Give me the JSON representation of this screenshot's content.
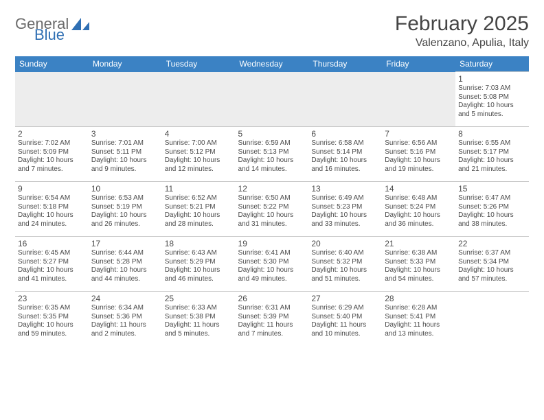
{
  "logo": {
    "text_general": "General",
    "text_blue": "Blue"
  },
  "title": {
    "month": "February 2025",
    "location": "Valenzano, Apulia, Italy"
  },
  "colors": {
    "header_bg": "#3b82c4",
    "header_text": "#ffffff",
    "band_bg": "#ededed",
    "rule": "#c9c9c9",
    "text": "#4a4a4a",
    "logo_gray": "#6b6b6b",
    "logo_blue": "#2f6fb3"
  },
  "calendar": {
    "columns": [
      "Sunday",
      "Monday",
      "Tuesday",
      "Wednesday",
      "Thursday",
      "Friday",
      "Saturday"
    ],
    "weeks": [
      [
        null,
        null,
        null,
        null,
        null,
        null,
        {
          "n": "1",
          "sunrise": "7:03 AM",
          "sunset": "5:08 PM",
          "daylight": "10 hours and 5 minutes."
        }
      ],
      [
        {
          "n": "2",
          "sunrise": "7:02 AM",
          "sunset": "5:09 PM",
          "daylight": "10 hours and 7 minutes."
        },
        {
          "n": "3",
          "sunrise": "7:01 AM",
          "sunset": "5:11 PM",
          "daylight": "10 hours and 9 minutes."
        },
        {
          "n": "4",
          "sunrise": "7:00 AM",
          "sunset": "5:12 PM",
          "daylight": "10 hours and 12 minutes."
        },
        {
          "n": "5",
          "sunrise": "6:59 AM",
          "sunset": "5:13 PM",
          "daylight": "10 hours and 14 minutes."
        },
        {
          "n": "6",
          "sunrise": "6:58 AM",
          "sunset": "5:14 PM",
          "daylight": "10 hours and 16 minutes."
        },
        {
          "n": "7",
          "sunrise": "6:56 AM",
          "sunset": "5:16 PM",
          "daylight": "10 hours and 19 minutes."
        },
        {
          "n": "8",
          "sunrise": "6:55 AM",
          "sunset": "5:17 PM",
          "daylight": "10 hours and 21 minutes."
        }
      ],
      [
        {
          "n": "9",
          "sunrise": "6:54 AM",
          "sunset": "5:18 PM",
          "daylight": "10 hours and 24 minutes."
        },
        {
          "n": "10",
          "sunrise": "6:53 AM",
          "sunset": "5:19 PM",
          "daylight": "10 hours and 26 minutes."
        },
        {
          "n": "11",
          "sunrise": "6:52 AM",
          "sunset": "5:21 PM",
          "daylight": "10 hours and 28 minutes."
        },
        {
          "n": "12",
          "sunrise": "6:50 AM",
          "sunset": "5:22 PM",
          "daylight": "10 hours and 31 minutes."
        },
        {
          "n": "13",
          "sunrise": "6:49 AM",
          "sunset": "5:23 PM",
          "daylight": "10 hours and 33 minutes."
        },
        {
          "n": "14",
          "sunrise": "6:48 AM",
          "sunset": "5:24 PM",
          "daylight": "10 hours and 36 minutes."
        },
        {
          "n": "15",
          "sunrise": "6:47 AM",
          "sunset": "5:26 PM",
          "daylight": "10 hours and 38 minutes."
        }
      ],
      [
        {
          "n": "16",
          "sunrise": "6:45 AM",
          "sunset": "5:27 PM",
          "daylight": "10 hours and 41 minutes."
        },
        {
          "n": "17",
          "sunrise": "6:44 AM",
          "sunset": "5:28 PM",
          "daylight": "10 hours and 44 minutes."
        },
        {
          "n": "18",
          "sunrise": "6:43 AM",
          "sunset": "5:29 PM",
          "daylight": "10 hours and 46 minutes."
        },
        {
          "n": "19",
          "sunrise": "6:41 AM",
          "sunset": "5:30 PM",
          "daylight": "10 hours and 49 minutes."
        },
        {
          "n": "20",
          "sunrise": "6:40 AM",
          "sunset": "5:32 PM",
          "daylight": "10 hours and 51 minutes."
        },
        {
          "n": "21",
          "sunrise": "6:38 AM",
          "sunset": "5:33 PM",
          "daylight": "10 hours and 54 minutes."
        },
        {
          "n": "22",
          "sunrise": "6:37 AM",
          "sunset": "5:34 PM",
          "daylight": "10 hours and 57 minutes."
        }
      ],
      [
        {
          "n": "23",
          "sunrise": "6:35 AM",
          "sunset": "5:35 PM",
          "daylight": "10 hours and 59 minutes."
        },
        {
          "n": "24",
          "sunrise": "6:34 AM",
          "sunset": "5:36 PM",
          "daylight": "11 hours and 2 minutes."
        },
        {
          "n": "25",
          "sunrise": "6:33 AM",
          "sunset": "5:38 PM",
          "daylight": "11 hours and 5 minutes."
        },
        {
          "n": "26",
          "sunrise": "6:31 AM",
          "sunset": "5:39 PM",
          "daylight": "11 hours and 7 minutes."
        },
        {
          "n": "27",
          "sunrise": "6:29 AM",
          "sunset": "5:40 PM",
          "daylight": "11 hours and 10 minutes."
        },
        {
          "n": "28",
          "sunrise": "6:28 AM",
          "sunset": "5:41 PM",
          "daylight": "11 hours and 13 minutes."
        },
        null
      ]
    ],
    "labels": {
      "sunrise": "Sunrise:",
      "sunset": "Sunset:",
      "daylight": "Daylight:"
    }
  }
}
